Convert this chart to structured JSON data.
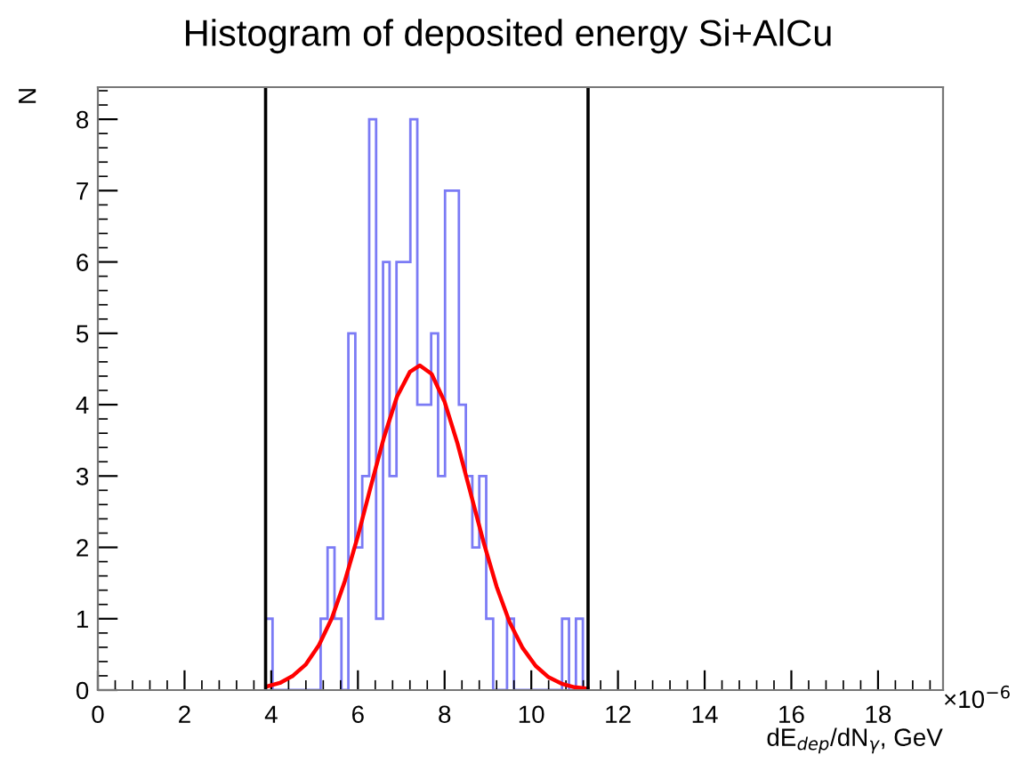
{
  "chart_data": {
    "type": "histogram",
    "title": "Histogram of deposited energy Si+AlCu",
    "xlabel": "dE$_{dep}$/dN$_{γ}$, GeV",
    "ylabel": "N",
    "bins": [
      3.87,
      4.03,
      4.19,
      4.35,
      4.5,
      4.66,
      4.82,
      4.98,
      5.14,
      5.3,
      5.46,
      5.62,
      5.78,
      5.94,
      6.1,
      6.26,
      6.42,
      6.58,
      6.73,
      6.89,
      7.05,
      7.21,
      7.37,
      7.53,
      7.69,
      7.85,
      8.01,
      8.17,
      8.33,
      8.49,
      8.64,
      8.8,
      8.96,
      9.12,
      9.28,
      9.44,
      9.6,
      9.76,
      9.92,
      10.08,
      10.24,
      10.4,
      10.55,
      10.71,
      10.87,
      11.03,
      11.19
    ],
    "values": [
      1,
      0,
      0,
      0,
      0,
      0,
      0,
      0,
      1,
      2,
      1,
      0,
      5,
      2,
      3,
      8,
      1,
      6,
      3,
      6,
      6,
      8,
      4,
      4,
      5,
      3,
      7,
      7,
      4,
      3,
      2,
      3,
      1,
      0,
      0,
      1,
      0,
      0,
      0,
      0,
      0,
      0,
      0,
      1,
      0,
      1
    ],
    "color": "#7b7bf5",
    "series": [
      {
        "type": "line",
        "color": "#ff0000",
        "x": [
          3.9,
          4.2,
          4.5,
          4.8,
          5.1,
          5.4,
          5.7,
          6.0,
          6.3,
          6.6,
          6.9,
          7.2,
          7.43,
          7.7,
          8.0,
          8.3,
          8.6,
          8.9,
          9.2,
          9.5,
          9.8,
          10.1,
          10.4,
          10.7,
          11.0,
          11.3
        ],
        "values": [
          0.05,
          0.1,
          0.2,
          0.36,
          0.63,
          1.01,
          1.53,
          2.16,
          2.86,
          3.54,
          4.11,
          4.46,
          4.55,
          4.43,
          4.04,
          3.45,
          2.76,
          2.07,
          1.45,
          0.95,
          0.59,
          0.34,
          0.18,
          0.09,
          0.04,
          0.02
        ]
      }
    ],
    "ref_lines": [
      {
        "axis": "x",
        "value": 3.87,
        "color": "#000000"
      },
      {
        "axis": "x",
        "value": 11.31,
        "color": "#000000"
      }
    ],
    "annotations": [
      "×10$^{−6}$"
    ],
    "xlim": [
      0,
      19.5
    ],
    "ylim": [
      0,
      8.45
    ],
    "xticks": [
      0,
      2,
      4,
      6,
      8,
      10,
      12,
      14,
      16,
      18
    ],
    "yticks": [
      0,
      1,
      2,
      3,
      4,
      5,
      6,
      7,
      8
    ],
    "grid": false,
    "legend": false
  }
}
